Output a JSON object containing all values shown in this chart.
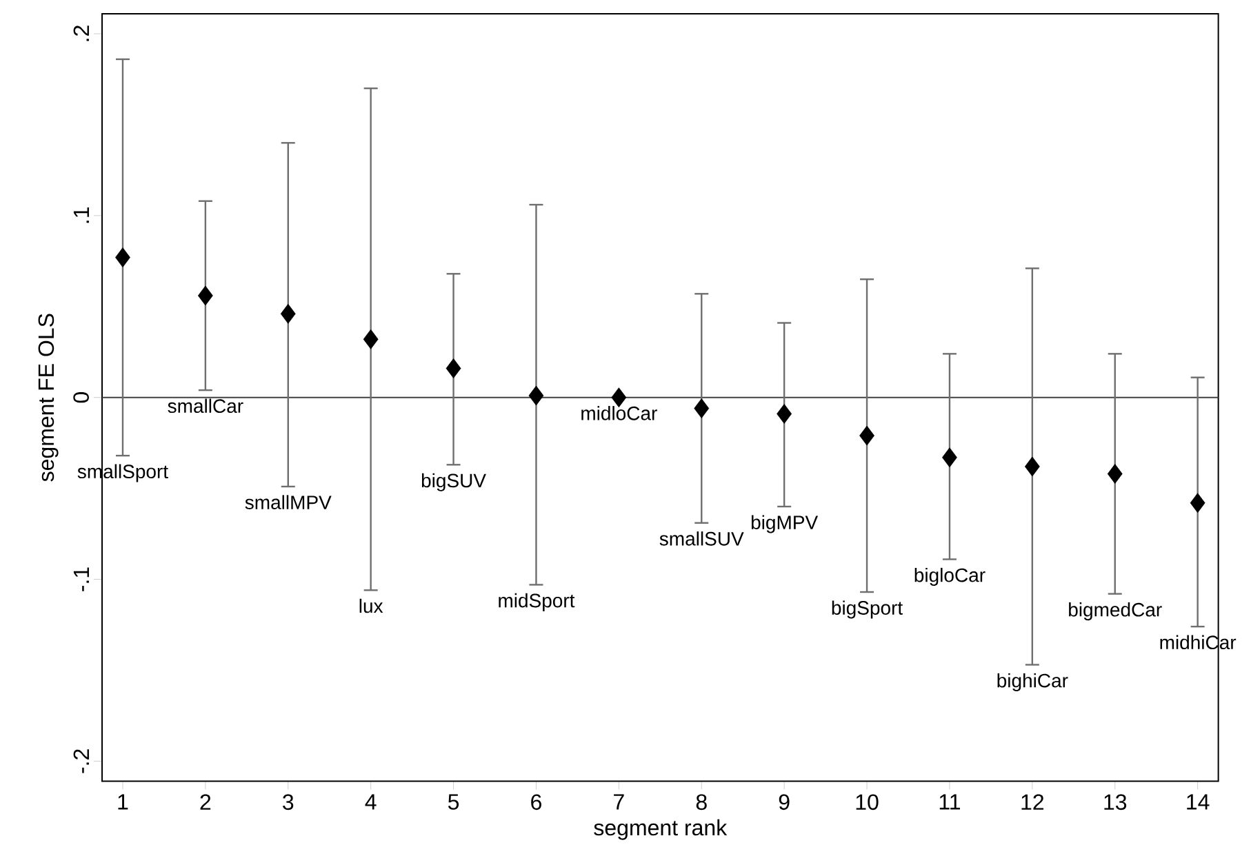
{
  "chart_data": {
    "type": "scatter",
    "xlabel": "segment rank",
    "ylabel": "segment FE OLS",
    "x": [
      1,
      2,
      3,
      4,
      5,
      6,
      7,
      8,
      9,
      10,
      11,
      12,
      13,
      14
    ],
    "values": [
      0.077,
      0.056,
      0.046,
      0.032,
      0.016,
      0.001,
      0.0,
      -0.006,
      -0.009,
      -0.021,
      -0.033,
      -0.038,
      -0.042,
      -0.058
    ],
    "errors": [
      [
        -0.032,
        0.186
      ],
      [
        0.004,
        0.108
      ],
      [
        -0.049,
        0.14
      ],
      [
        -0.106,
        0.17
      ],
      [
        -0.037,
        0.068
      ],
      [
        -0.103,
        0.106
      ],
      null,
      [
        -0.069,
        0.057
      ],
      [
        -0.06,
        0.041
      ],
      [
        -0.107,
        0.065
      ],
      [
        -0.089,
        0.024
      ],
      [
        -0.147,
        0.071
      ],
      [
        -0.108,
        0.024
      ],
      [
        -0.126,
        0.011
      ]
    ],
    "color": "#000000",
    "marker": "diamond",
    "xlim": [
      0.75,
      14.25
    ],
    "ylim": [
      -0.211,
      0.211
    ],
    "xticks": [
      1,
      2,
      3,
      4,
      5,
      6,
      7,
      8,
      9,
      10,
      11,
      12,
      13,
      14
    ],
    "yticks": [
      {
        "value": -0.2,
        "label": "-.2"
      },
      {
        "value": -0.1,
        "label": "-.1"
      },
      {
        "value": 0,
        "label": "0"
      },
      {
        "value": 0.1,
        "label": ".1"
      },
      {
        "value": 0.2,
        "label": ".2"
      }
    ],
    "grid": false,
    "ref_lines": [
      {
        "axis": "y",
        "value": 0,
        "color": "#404040"
      }
    ],
    "annotations": [
      {
        "text": "smallSport",
        "x": 1,
        "y": -0.032
      },
      {
        "text": "smallCar",
        "x": 2,
        "y": 0.004
      },
      {
        "text": "smallMPV",
        "x": 3,
        "y": -0.049
      },
      {
        "text": "lux",
        "x": 4,
        "y": -0.106
      },
      {
        "text": "bigSUV",
        "x": 5,
        "y": -0.037
      },
      {
        "text": "midSport",
        "x": 6,
        "y": -0.103
      },
      {
        "text": "midloCar",
        "x": 7,
        "y": 0.0
      },
      {
        "text": "smallSUV",
        "x": 8,
        "y": -0.069
      },
      {
        "text": "bigMPV",
        "x": 9,
        "y": -0.06
      },
      {
        "text": "bigSport",
        "x": 10,
        "y": -0.107
      },
      {
        "text": "bigloCar",
        "x": 11,
        "y": -0.089
      },
      {
        "text": "bighiCar",
        "x": 12,
        "y": -0.147
      },
      {
        "text": "bigmedCar",
        "x": 13,
        "y": -0.108
      },
      {
        "text": "midhiCar",
        "x": 14,
        "y": -0.126
      }
    ]
  }
}
